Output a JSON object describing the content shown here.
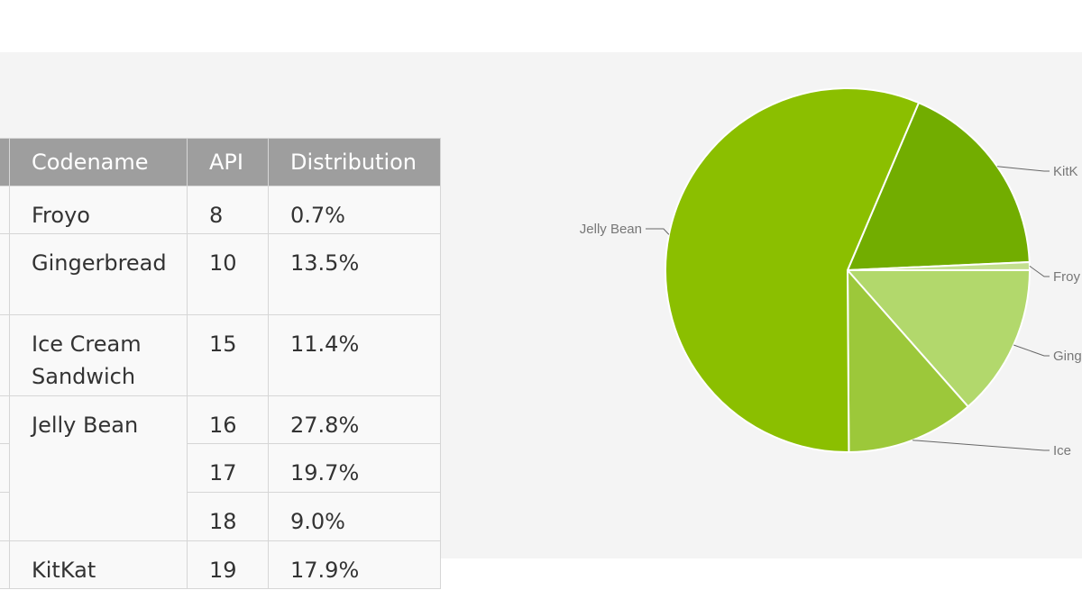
{
  "table": {
    "headers": [
      "Codename",
      "API",
      "Distribution"
    ],
    "rows": [
      {
        "codename": "Froyo",
        "api": "8",
        "distribution": "0.7%"
      },
      {
        "codename": "Gingerbread",
        "api": "10",
        "distribution": "13.5%"
      },
      {
        "codename": "Ice Cream Sandwich",
        "api": "15",
        "distribution": "11.4%"
      },
      {
        "codename": "Jelly Bean",
        "api": "16",
        "distribution": "27.8%"
      },
      {
        "codename": "",
        "api": "17",
        "distribution": "19.7%"
      },
      {
        "codename": "",
        "api": "18",
        "distribution": "9.0%"
      },
      {
        "codename": "KitKat",
        "api": "19",
        "distribution": "17.9%"
      }
    ]
  },
  "chart_data": {
    "type": "pie",
    "categories": [
      "KitKat",
      "Froyo",
      "Gingerbread",
      "Ice Cream Sandwich",
      "Jelly Bean"
    ],
    "values": [
      17.9,
      0.7,
      13.5,
      11.4,
      56.5
    ],
    "colors": [
      "#72ad00",
      "#c3df8f",
      "#b2d86c",
      "#9cc83a",
      "#8bbf00"
    ],
    "visible_labels": [
      "KitK",
      "Froy",
      "Ging",
      "Ice",
      "Jelly Bean"
    ],
    "legend": "callout labels"
  }
}
